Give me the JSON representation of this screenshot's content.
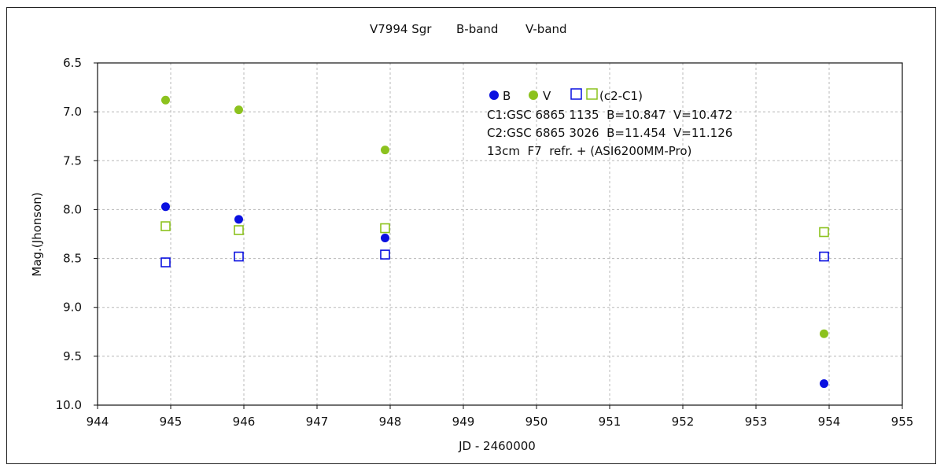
{
  "chart_data": {
    "type": "scatter",
    "title": "V7994 Sgr",
    "legend_b": "B-band",
    "legend_v": "V-band",
    "xlabel": "JD - 2460000",
    "ylabel": "Mag.(Jhonson)",
    "xlim": [
      944,
      955
    ],
    "ylim": [
      6.5,
      10.0
    ],
    "y_inverted": true,
    "grid": true,
    "x_ticks": [
      "944",
      "945",
      "946",
      "947",
      "948",
      "949",
      "950",
      "951",
      "952",
      "953",
      "954",
      "955"
    ],
    "y_ticks": [
      "6.5",
      "7.0",
      "7.5",
      "8.0",
      "8.5",
      "9.0",
      "9.5",
      "10.0"
    ],
    "series": [
      {
        "name": "B",
        "marker": "filled-circle",
        "color": "#0a10e0",
        "x": [
          944.93,
          945.93,
          947.93,
          953.93
        ],
        "y": [
          7.97,
          8.1,
          8.29,
          9.78
        ]
      },
      {
        "name": "V",
        "marker": "filled-circle",
        "color": "#8cc21e",
        "x": [
          944.93,
          945.93,
          947.93,
          953.93
        ],
        "y": [
          6.88,
          6.98,
          7.39,
          9.27
        ]
      },
      {
        "name": "B (c2-C1)",
        "marker": "open-square",
        "color": "#0a10e0",
        "x": [
          944.93,
          945.93,
          947.93,
          953.93
        ],
        "y": [
          8.54,
          8.48,
          8.46,
          8.48
        ]
      },
      {
        "name": "V (c2-C1)",
        "marker": "open-square",
        "color": "#8cc21e",
        "x": [
          944.93,
          945.93,
          947.93,
          953.93
        ],
        "y": [
          8.17,
          8.21,
          8.19,
          8.23
        ]
      }
    ],
    "annotation": {
      "b_label": "B",
      "v_label": "V",
      "cmp_label": "(c2-C1)",
      "line1": "C1:GSC 6865 1135  B=10.847  V=10.472",
      "line2": "C2:GSC 6865 3026  B=11.454  V=11.126",
      "line3": "13cm  F7  refr. + (ASI6200MM-Pro)"
    }
  },
  "colors": {
    "b": "#0a10e0",
    "v": "#8cc21e",
    "grid": "#b8b8b8",
    "text": "#111111"
  }
}
